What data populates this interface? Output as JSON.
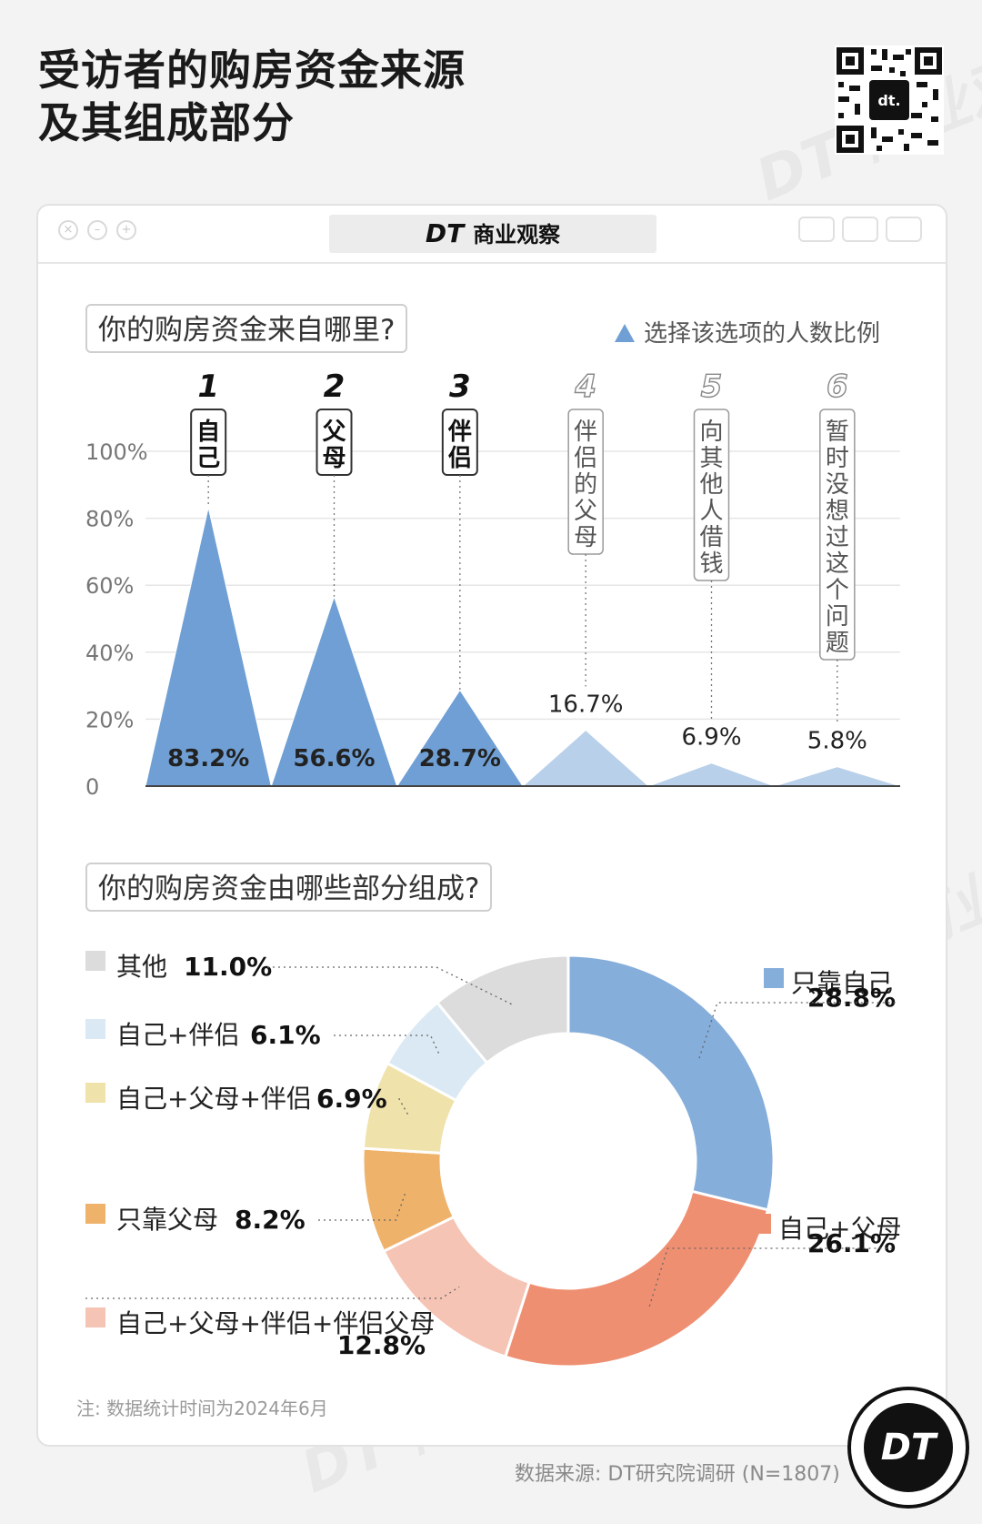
{
  "title_line1": "受访者的购房资金来源",
  "title_line2": "及其组成部分",
  "brand": {
    "dt": "DT",
    "name": "商业观察"
  },
  "watermark": "DT 商业观察",
  "q1": "你的购房资金来自哪里?",
  "legend_label": "选择该选项的人数比例",
  "q2": "你的购房资金由哪些部分组成?",
  "note": "注: 数据统计时间为2024年6月",
  "source": "数据来源: DT研究院调研 (N=1807)",
  "logo": "DT",
  "colors": {
    "blue_dark": "#6f9fd4",
    "blue_light": "#a9c6e6",
    "bar_blue_light": "#b9d0ea"
  },
  "chart_data": [
    {
      "type": "area",
      "title": "你的购房资金来自哪里?",
      "ylim": [
        0,
        100
      ],
      "yticks": [
        "0",
        "20%",
        "40%",
        "60%",
        "80%",
        "100%"
      ],
      "grid": true,
      "legend": "选择该选项的人数比例",
      "categories": [
        {
          "rank": "1",
          "label": "自己",
          "value": 83.2,
          "value_label": "83.2%"
        },
        {
          "rank": "2",
          "label": "父母",
          "value": 56.6,
          "value_label": "56.6%"
        },
        {
          "rank": "3",
          "label": "伴侣",
          "value": 28.7,
          "value_label": "28.7%"
        },
        {
          "rank": "4",
          "label": "伴侣的父母",
          "value": 16.7,
          "value_label": "16.7%"
        },
        {
          "rank": "5",
          "label": "向其他人借钱",
          "value": 6.9,
          "value_label": "6.9%"
        },
        {
          "rank": "6",
          "label": "暂时没想过这个问题",
          "value": 5.8,
          "value_label": "5.8%"
        }
      ]
    },
    {
      "type": "pie",
      "title": "你的购房资金由哪些部分组成?",
      "slices": [
        {
          "label": "只靠自己",
          "value": 28.8,
          "value_label": "28.8%",
          "color": "#86aedb"
        },
        {
          "label": "自己+父母",
          "value": 26.1,
          "value_label": "26.1%",
          "color": "#ef8f72"
        },
        {
          "label": "自己+父母+伴侣+伴侣父母",
          "value": 12.8,
          "value_label": "12.8%",
          "color": "#f5c4b4"
        },
        {
          "label": "只靠父母",
          "value": 8.2,
          "value_label": "8.2%",
          "color": "#eeb26a"
        },
        {
          "label": "自己+父母+伴侣",
          "value": 6.9,
          "value_label": "6.9%",
          "color": "#efe2aa"
        },
        {
          "label": "自己+伴侣",
          "value": 6.1,
          "value_label": "6.1%",
          "color": "#dae9f3"
        },
        {
          "label": "其他",
          "value": 11.0,
          "value_label": "11.0%",
          "color": "#dcdcdc"
        }
      ]
    }
  ]
}
